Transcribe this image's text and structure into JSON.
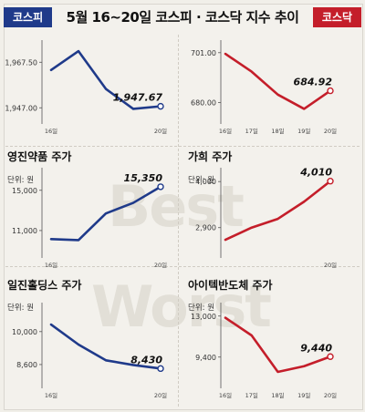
{
  "header": {
    "title": "5월 16~20일 코스피 · 코스닥 지수 추이",
    "left_tag": "코스피",
    "right_tag": "코스닥"
  },
  "watermark": {
    "line1": "Best",
    "line2": "Worst"
  },
  "colors": {
    "blue": "#1f3a8a",
    "red": "#c41e2a"
  },
  "chart_data": [
    {
      "type": "line",
      "title": "",
      "subtitle": "",
      "color": "#1f3a8a",
      "x": [
        "16일",
        "17일",
        "18일",
        "19일",
        "20일"
      ],
      "x_labels_shown": [
        "16일",
        "",
        "",
        "",
        "20일"
      ],
      "values": [
        1964.0,
        1972.5,
        1955.5,
        1946.5,
        1947.67
      ],
      "ylim": [
        1943.0,
        1975.0
      ],
      "yticks": [
        1947.0,
        1967.5
      ],
      "ytick_labels": [
        "1,947.00",
        "1,967.50"
      ],
      "last_label": "1,947.67"
    },
    {
      "type": "line",
      "title": "",
      "subtitle": "",
      "color": "#c41e2a",
      "x": [
        "16일",
        "17일",
        "18일",
        "19일",
        "20일"
      ],
      "x_labels_shown": [
        "16일",
        "17일",
        "18일",
        "19일",
        "20일"
      ],
      "values": [
        700.5,
        693.0,
        683.3,
        677.3,
        684.92
      ],
      "ylim": [
        674.0,
        704.0
      ],
      "yticks": [
        680.0,
        701.0
      ],
      "ytick_labels": [
        "680.00",
        "701.00"
      ],
      "last_label": "684.92"
    },
    {
      "type": "line",
      "title": "영진약품 주가",
      "subtitle": "단위: 원",
      "color": "#1f3a8a",
      "x": [
        "16일",
        "17일",
        "18일",
        "19일",
        "20일"
      ],
      "x_labels_shown": [
        "16일",
        "",
        "",
        "",
        "20일"
      ],
      "values": [
        10150,
        10050,
        12700,
        13750,
        15350
      ],
      "ylim": [
        9000,
        16700
      ],
      "yticks": [
        11000,
        15000
      ],
      "ytick_labels": [
        "11,000",
        "15,000"
      ],
      "last_label": "15,350"
    },
    {
      "type": "line",
      "title": "가희 주가",
      "subtitle": "단위: 원",
      "color": "#c41e2a",
      "x": [
        "16일",
        "17일",
        "18일",
        "19일",
        "20일"
      ],
      "x_labels_shown": [
        "",
        "",
        "",
        "",
        "20일"
      ],
      "values": [
        2610,
        2900,
        3110,
        3520,
        4010
      ],
      "ylim": [
        2350,
        4200
      ],
      "yticks": [
        2900,
        4000
      ],
      "ytick_labels": [
        "2,900",
        "4,000"
      ],
      "last_label": "4,010"
    },
    {
      "type": "line",
      "title": "일진홀딩스 주가",
      "subtitle": "단위: 원",
      "color": "#1f3a8a",
      "x": [
        "16일",
        "17일",
        "18일",
        "19일",
        "20일"
      ],
      "x_labels_shown": [
        "16일",
        "",
        "",
        "",
        "20일"
      ],
      "values": [
        10300,
        9450,
        8780,
        8580,
        8430
      ],
      "ylim": [
        7900,
        11000
      ],
      "yticks": [
        8600,
        10000
      ],
      "ytick_labels": [
        "8,600",
        "10,000"
      ],
      "last_label": "8,430"
    },
    {
      "type": "line",
      "title": "아이텍반도체 주가",
      "subtitle": "단위: 원",
      "color": "#c41e2a",
      "x": [
        "16일",
        "17일",
        "18일",
        "19일",
        "20일"
      ],
      "x_labels_shown": [
        "16일",
        "17일",
        "18일",
        "19일",
        "20일"
      ],
      "values": [
        12850,
        11300,
        8100,
        8600,
        9440
      ],
      "ylim": [
        7300,
        13700
      ],
      "yticks": [
        9400,
        13000
      ],
      "ytick_labels": [
        "9,400",
        "13,000"
      ],
      "last_label": "9,440"
    }
  ]
}
